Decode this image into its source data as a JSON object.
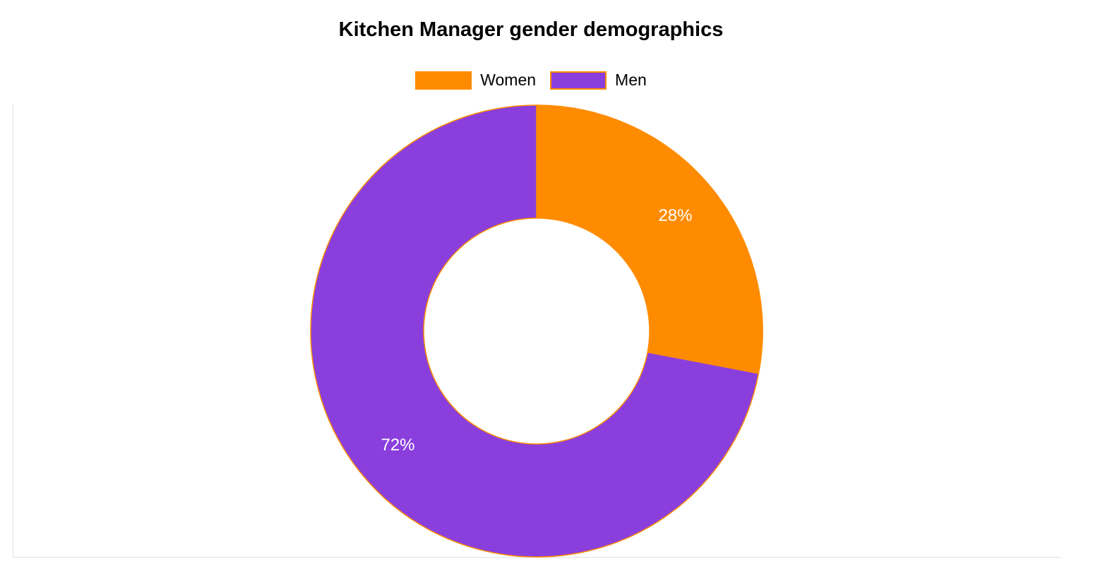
{
  "chart_data": {
    "type": "pie",
    "title": "Kitchen Manager gender demographics",
    "categories": [
      "Women",
      "Men"
    ],
    "values": [
      28,
      72
    ],
    "labels": [
      "28%",
      "72%"
    ],
    "colors": [
      "#ff8c00",
      "#8a3fdd"
    ],
    "slice_border_color": "#ff8c00",
    "donut": true,
    "legend_position": "top"
  }
}
